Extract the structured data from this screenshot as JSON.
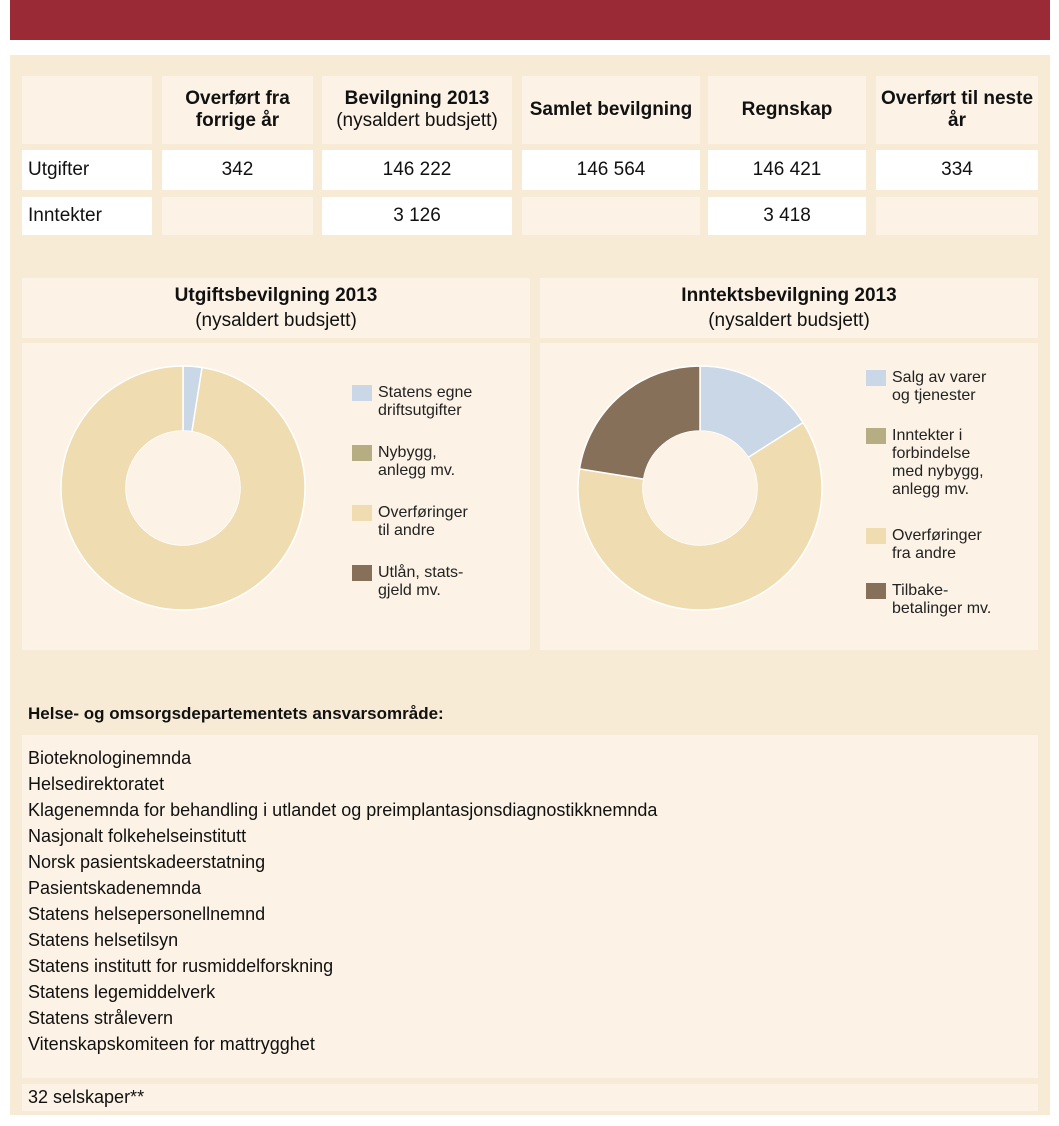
{
  "table": {
    "headers": [
      {
        "title": "Overført fra forrige år"
      },
      {
        "title": "Bevilgning 2013",
        "note": "(nysaldert budsjett)"
      },
      {
        "title": "Samlet bevilgning"
      },
      {
        "title": "Regnskap"
      },
      {
        "title": "Overført til neste år"
      }
    ],
    "rows": [
      {
        "label": "Utgifter",
        "cells": [
          "342",
          "146 222",
          "146 564",
          "146 421",
          "334"
        ]
      },
      {
        "label": "Inntekter",
        "cells": [
          null,
          "3 126",
          null,
          "3 418",
          null
        ]
      }
    ]
  },
  "chart_data": [
    {
      "type": "pie",
      "title": "Utgiftsbevilgning 2013",
      "subtitle": "(nysaldert budsjett)",
      "categories": [
        "Statens egne\ndriftsutgifter",
        "Nybygg,\nanlegg mv.",
        "Overføringer\ntil andre",
        "Utlån, stats-\ngjeld mv."
      ],
      "values": [
        2.5,
        0,
        97.5,
        0
      ],
      "colors": [
        "#c9d7e6",
        "#b6ae82",
        "#efdcb0",
        "#86705a"
      ]
    },
    {
      "type": "pie",
      "title": "Inntektsbevilgning 2013",
      "subtitle": "(nysaldert budsjett)",
      "categories": [
        "Salg av varer\nog tjenester",
        "Inntekter i\nforbindelse\nmed nybygg,\nanlegg mv.",
        "Overføringer\nfra andre",
        "Tilbake-\nbetalinger mv."
      ],
      "values": [
        16,
        0,
        61.5,
        22.5
      ],
      "colors": [
        "#c9d7e6",
        "#b6ae82",
        "#efdcb0",
        "#86705a"
      ]
    }
  ],
  "section": {
    "heading": "Helse- og omsorgsdepartementets ansvarsområde:",
    "items": [
      "Bioteknologinemnda",
      "Helsedirektoratet",
      "Klagenemnda for behandling i utlandet og preimplantasjonsdiagnostikknemnda",
      "Nasjonalt folkehelseinstitutt",
      "Norsk pasientskadeerstatning",
      "Pasientskadenemnda",
      "Statens helsepersonellnemnd",
      "Statens helsetilsyn",
      "Statens institutt for rusmiddelforskning",
      "Statens legemiddelverk",
      "Statens strålevern",
      "Vitenskapskomiteen for mattrygghet"
    ],
    "footer": "32 selskaper**"
  }
}
